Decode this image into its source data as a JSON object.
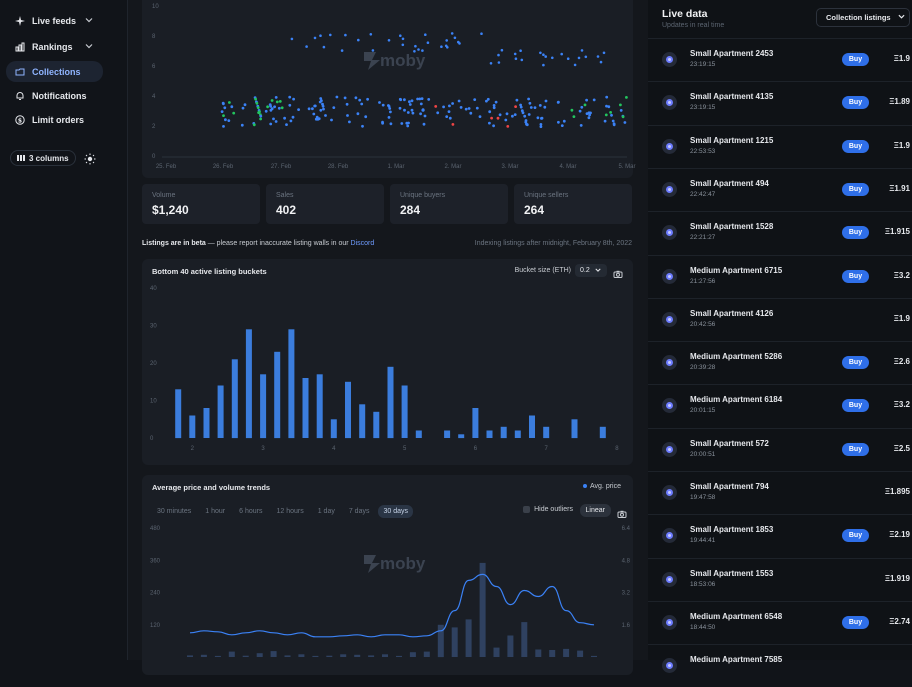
{
  "sidebar": {
    "items": [
      {
        "label": "Live feeds",
        "icon": "sparkle-icon",
        "chevron": true
      },
      {
        "label": "Rankings",
        "icon": "bar-chart-icon",
        "chevron": true
      },
      {
        "label": "Collections",
        "icon": "folder-icon",
        "active": true
      },
      {
        "label": "Notifications",
        "icon": "bell-icon"
      },
      {
        "label": "Limit orders",
        "icon": "dollar-icon"
      }
    ],
    "columns_label": "3 columns"
  },
  "scatter": {
    "watermark": "moby",
    "y_ticks": [
      "10",
      "8",
      "6",
      "4",
      "2",
      "0"
    ],
    "x_ticks": [
      "25. Feb",
      "26. Feb",
      "27. Feb",
      "28. Feb",
      "1. Mar",
      "2. Mar",
      "3. Mar",
      "4. Mar",
      "5. Mar"
    ]
  },
  "stats": [
    {
      "label": "Volume",
      "value": "$1,240"
    },
    {
      "label": "Sales",
      "value": "402"
    },
    {
      "label": "Unique buyers",
      "value": "284"
    },
    {
      "label": "Unique sellers",
      "value": "264"
    }
  ],
  "beta": {
    "bold": "Listings are in beta",
    "text": " — please report inaccurate listing walls in our ",
    "link": "Discord",
    "indexing": "Indexing listings after midnight, February 8th, 2022"
  },
  "buckets": {
    "title": "Bottom 40 active listing buckets",
    "size_label": "Bucket size (ETH)",
    "size_value": "0.2"
  },
  "trends": {
    "title": "Average price and volume trends",
    "legend": "Avg. price",
    "timeframes": [
      "30 minutes",
      "1 hour",
      "6 hours",
      "12 hours",
      "1 day",
      "7 days",
      "30 days"
    ],
    "active_timeframe": 6,
    "hide_outliers": "Hide outliers",
    "scale": "Linear",
    "watermark": "moby",
    "y_left": [
      "480",
      "360",
      "240",
      "120"
    ],
    "y_right": [
      "6.4",
      "4.8",
      "3.2",
      "1.6"
    ]
  },
  "chart_data": [
    {
      "type": "bar",
      "title": "Bottom 40 active listing buckets",
      "x": [
        1.8,
        2.0,
        2.2,
        2.4,
        2.6,
        2.8,
        3.0,
        3.2,
        3.4,
        3.6,
        3.8,
        4.0,
        4.2,
        4.4,
        4.6,
        4.8,
        5.0,
        5.2,
        5.6,
        5.8,
        6.0,
        6.2,
        6.4,
        6.6,
        6.8,
        7.0,
        7.4,
        7.8
      ],
      "values": [
        13,
        6,
        8,
        14,
        21,
        29,
        17,
        23,
        29,
        16,
        17,
        5,
        15,
        9,
        7,
        19,
        14,
        2,
        2,
        1,
        8,
        2,
        3,
        2,
        6,
        3,
        5,
        3
      ],
      "x_ticks": [
        "2",
        "3",
        "4",
        "5",
        "6",
        "7",
        "8"
      ],
      "y_ticks": [
        "0",
        "10",
        "20",
        "30",
        "40"
      ],
      "ylim": [
        0,
        40
      ],
      "xlim": [
        1.6,
        8.1
      ],
      "color": "#3b7ddd"
    },
    {
      "type": "line",
      "title": "Average price and volume trends",
      "series": [
        {
          "name": "Avg. price",
          "color": "#3b82f6",
          "x": [
            0,
            1,
            2,
            3,
            4,
            5,
            6,
            7,
            8,
            9,
            10,
            11,
            12,
            13,
            14,
            15,
            16,
            17,
            18,
            19,
            20,
            21,
            22,
            23,
            24,
            25,
            26,
            27,
            28,
            29
          ],
          "values": [
            1.2,
            1.3,
            1.25,
            1.1,
            1.2,
            1.3,
            1.2,
            1.1,
            1.2,
            1.0,
            1.0,
            1.05,
            1.1,
            1.0,
            1.1,
            1.1,
            1.0,
            1.05,
            1.3,
            2.3,
            3.8,
            4.1,
            3.5,
            2.6,
            3.3,
            3.0,
            3.5,
            2.3,
            1.7,
            1.6
          ]
        }
      ],
      "bars": {
        "color": "#2f4160",
        "x": [
          0,
          1,
          2,
          3,
          4,
          5,
          6,
          7,
          8,
          9,
          10,
          11,
          12,
          13,
          14,
          15,
          16,
          17,
          18,
          19,
          20,
          21,
          22,
          23,
          24,
          25,
          26,
          27,
          28,
          29
        ],
        "values": [
          6,
          8,
          4,
          20,
          5,
          14,
          22,
          6,
          10,
          4,
          5,
          10,
          8,
          6,
          10,
          4,
          18,
          20,
          120,
          110,
          140,
          350,
          35,
          80,
          130,
          28,
          26,
          30,
          24,
          4
        ]
      },
      "ylim_left": [
        0,
        480
      ],
      "ylim_right": [
        0,
        6.4
      ]
    }
  ],
  "live": {
    "title": "Live data",
    "subtitle": "Updates in real time",
    "select_label": "Collection listings",
    "buy_label": "Buy",
    "rows": [
      {
        "name": "Small Apartment 2453",
        "time": "23:19:15",
        "price": "Ξ1.9",
        "buy": true
      },
      {
        "name": "Small Apartment 4135",
        "time": "23:19:15",
        "price": "Ξ1.89",
        "buy": true
      },
      {
        "name": "Small Apartment 1215",
        "time": "22:53:53",
        "price": "Ξ1.9",
        "buy": true
      },
      {
        "name": "Small Apartment 494",
        "time": "22:42:47",
        "price": "Ξ1.91",
        "buy": true
      },
      {
        "name": "Small Apartment 1528",
        "time": "22:21:27",
        "price": "Ξ1.915",
        "buy": true
      },
      {
        "name": "Medium Apartment 6715",
        "time": "21:27:56",
        "price": "Ξ3.2",
        "buy": true
      },
      {
        "name": "Small Apartment 4126",
        "time": "20:42:56",
        "price": "Ξ1.9",
        "buy": false
      },
      {
        "name": "Medium Apartment 5286",
        "time": "20:39:28",
        "price": "Ξ2.6",
        "buy": true
      },
      {
        "name": "Medium Apartment 6184",
        "time": "20:01:15",
        "price": "Ξ3.2",
        "buy": true
      },
      {
        "name": "Small Apartment 572",
        "time": "20:00:51",
        "price": "Ξ2.5",
        "buy": true
      },
      {
        "name": "Small Apartment 794",
        "time": "19:47:58",
        "price": "Ξ1.895",
        "buy": false
      },
      {
        "name": "Small Apartment 1853",
        "time": "19:44:41",
        "price": "Ξ2.19",
        "buy": true
      },
      {
        "name": "Small Apartment 1553",
        "time": "18:53:06",
        "price": "Ξ1.919",
        "buy": false
      },
      {
        "name": "Medium Apartment 6548",
        "time": "18:44:50",
        "price": "Ξ2.74",
        "buy": true
      },
      {
        "name": "Medium Apartment 7585",
        "time": "",
        "price": "",
        "buy": false
      }
    ]
  }
}
